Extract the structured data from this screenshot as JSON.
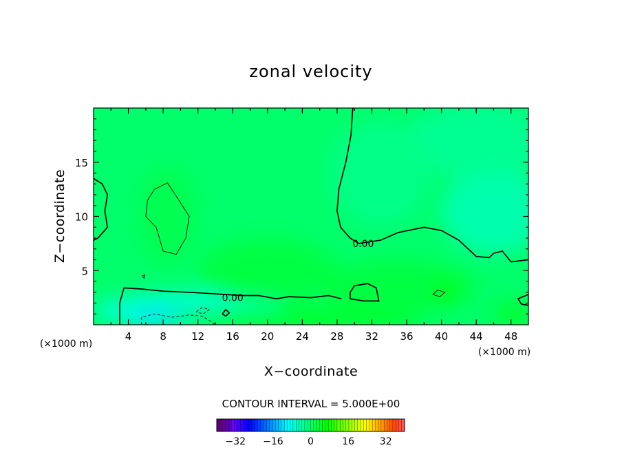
{
  "chart_data": {
    "type": "heatmap",
    "title": "zonal velocity",
    "xlabel": "X−coordinate",
    "ylabel": "Z−coordinate",
    "x_unit": "(×1000 m)",
    "y_unit": "(×1000 m)",
    "xlim": [
      0,
      50
    ],
    "ylim": [
      0,
      20
    ],
    "x_ticks": [
      4,
      8,
      12,
      16,
      20,
      24,
      28,
      32,
      36,
      40,
      44,
      48
    ],
    "y_ticks": [
      5,
      10,
      15
    ],
    "contour_interval_text": "CONTOUR INTERVAL = 5.000E+00",
    "contour_labels": [
      {
        "text": "0.00",
        "x": 16.0,
        "y": 2.5
      },
      {
        "text": "0.00",
        "x": 31.0,
        "y": 7.5
      }
    ],
    "colorbar": {
      "min": -40,
      "max": 40,
      "ticks": [
        -32,
        -16,
        0,
        16,
        32
      ],
      "tick_labels": [
        "−32",
        "−16",
        "0",
        "16",
        "32"
      ]
    },
    "zero_contours": [
      [
        [
          29.8,
          20.0
        ],
        [
          29.6,
          17.5
        ],
        [
          29.0,
          15.0
        ],
        [
          28.2,
          12.5
        ],
        [
          28.0,
          10.5
        ],
        [
          28.4,
          9.0
        ],
        [
          29.5,
          8.0
        ],
        [
          30.5,
          7.5
        ],
        [
          33.0,
          7.8
        ],
        [
          35.0,
          8.5
        ],
        [
          38.0,
          9.0
        ],
        [
          40.0,
          8.7
        ],
        [
          42.0,
          7.8
        ],
        [
          44.0,
          6.3
        ],
        [
          45.5,
          6.2
        ],
        [
          46.0,
          6.6
        ],
        [
          47.0,
          6.8
        ],
        [
          48.0,
          5.8
        ],
        [
          50.0,
          6.0
        ]
      ],
      [
        [
          3.0,
          0.0
        ],
        [
          3.0,
          2.0
        ],
        [
          3.5,
          3.4
        ],
        [
          5.5,
          3.3
        ],
        [
          8.0,
          3.1
        ],
        [
          11.0,
          3.0
        ],
        [
          13.0,
          2.9
        ],
        [
          15.0,
          2.8
        ],
        [
          17.0,
          2.7
        ],
        [
          19.0,
          2.7
        ],
        [
          21.0,
          2.4
        ],
        [
          22.5,
          2.6
        ],
        [
          25.0,
          2.5
        ],
        [
          27.0,
          2.7
        ],
        [
          28.5,
          2.4
        ]
      ],
      [
        [
          0.0,
          13.5
        ],
        [
          1.0,
          13.0
        ],
        [
          1.6,
          12.0
        ],
        [
          1.3,
          10.5
        ],
        [
          1.6,
          9.0
        ],
        [
          0.5,
          8.0
        ],
        [
          0.0,
          7.8
        ]
      ],
      [
        [
          29.5,
          3.0
        ],
        [
          30.0,
          3.6
        ],
        [
          31.5,
          3.8
        ],
        [
          32.5,
          3.4
        ],
        [
          32.8,
          2.2
        ],
        [
          31.0,
          2.2
        ],
        [
          29.5,
          2.4
        ],
        [
          29.5,
          3.0
        ]
      ],
      [
        [
          48.8,
          2.4
        ],
        [
          50.0,
          2.8
        ],
        [
          50.0,
          1.8
        ],
        [
          49.2,
          1.9
        ],
        [
          48.8,
          2.4
        ]
      ],
      [
        [
          14.8,
          1.0
        ],
        [
          15.2,
          1.4
        ],
        [
          15.6,
          1.1
        ],
        [
          15.2,
          0.8
        ],
        [
          14.8,
          1.0
        ]
      ]
    ],
    "thin_contours": [
      [
        [
          7.0,
          12.5
        ],
        [
          8.5,
          13.1
        ],
        [
          9.8,
          11.5
        ],
        [
          11.0,
          10.0
        ],
        [
          10.6,
          8.0
        ],
        [
          9.5,
          6.5
        ],
        [
          8.0,
          6.8
        ],
        [
          7.2,
          9.0
        ],
        [
          6.0,
          10.0
        ],
        [
          6.2,
          11.5
        ],
        [
          7.0,
          12.5
        ]
      ],
      [
        [
          39.0,
          2.8
        ],
        [
          39.6,
          3.2
        ],
        [
          40.4,
          3.0
        ],
        [
          39.8,
          2.6
        ],
        [
          39.0,
          2.8
        ]
      ],
      [
        [
          5.6,
          4.5
        ],
        [
          5.9,
          4.6
        ],
        [
          5.8,
          4.3
        ],
        [
          5.6,
          4.5
        ]
      ]
    ],
    "dashed_contours": [
      [
        [
          5.5,
          0.0
        ],
        [
          5.5,
          0.7
        ],
        [
          7.0,
          1.0
        ],
        [
          9.0,
          0.7
        ],
        [
          11.0,
          0.9
        ],
        [
          12.5,
          0.8
        ],
        [
          13.5,
          0.3
        ],
        [
          14.0,
          0.0
        ]
      ],
      [
        [
          11.8,
          1.2
        ],
        [
          12.5,
          1.6
        ],
        [
          13.3,
          1.4
        ],
        [
          12.6,
          1.0
        ],
        [
          11.8,
          1.2
        ]
      ]
    ],
    "field_blobs": [
      {
        "x": 8.5,
        "y": 10.0,
        "rx": 3.5,
        "ry": 4.5,
        "value": 2
      },
      {
        "x": 11.0,
        "y": 1.3,
        "rx": 11.0,
        "ry": 1.7,
        "value": -8
      },
      {
        "x": 9.0,
        "y": 0.6,
        "rx": 5.0,
        "ry": 0.8,
        "value": -12
      },
      {
        "x": 46.0,
        "y": 10.5,
        "rx": 6.0,
        "ry": 4.0,
        "value": -5
      },
      {
        "x": 44.0,
        "y": 17.0,
        "rx": 8.0,
        "ry": 3.5,
        "value": -3
      },
      {
        "x": 33.0,
        "y": 14.0,
        "rx": 6.0,
        "ry": 5.0,
        "value": -2
      },
      {
        "x": 20.0,
        "y": 5.0,
        "rx": 8.0,
        "ry": 3.0,
        "value": 3
      },
      {
        "x": 35.0,
        "y": 3.5,
        "rx": 9.0,
        "ry": 2.5,
        "value": 3
      },
      {
        "x": 40.5,
        "y": 3.0,
        "rx": 1.5,
        "ry": 1.0,
        "value": 7
      },
      {
        "x": 23.0,
        "y": 0.6,
        "rx": 15.0,
        "ry": 1.0,
        "value": 5
      },
      {
        "x": 48.5,
        "y": 1.0,
        "rx": 2.5,
        "ry": 1.0,
        "value": 5
      }
    ]
  }
}
